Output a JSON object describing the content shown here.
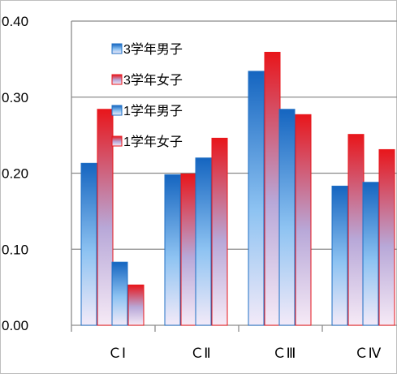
{
  "chart_data": {
    "type": "bar",
    "title": "",
    "xlabel": "",
    "ylabel": "",
    "categories": [
      "ＣⅠ",
      "ＣⅡ",
      "ＣⅢ",
      "ＣⅣ"
    ],
    "ylim": [
      0,
      0.4
    ],
    "yticks": [
      "0.00",
      "0.10",
      "0.20",
      "0.30",
      "0.40"
    ],
    "grid": true,
    "legend_position": "top-left",
    "series": [
      {
        "name": "3学年男子",
        "color": "#1f6fc4",
        "values": [
          0.213,
          0.198,
          0.334,
          0.183
        ]
      },
      {
        "name": "3学年女子",
        "color": "#e8161b",
        "values": [
          0.284,
          0.199,
          0.359,
          0.251
        ]
      },
      {
        "name": "1学年男子",
        "color": "#1f6fc4",
        "values": [
          0.083,
          0.22,
          0.284,
          0.188
        ]
      },
      {
        "name": "1学年女子",
        "color": "#e8161b",
        "values": [
          0.053,
          0.246,
          0.277,
          0.231
        ]
      }
    ]
  }
}
